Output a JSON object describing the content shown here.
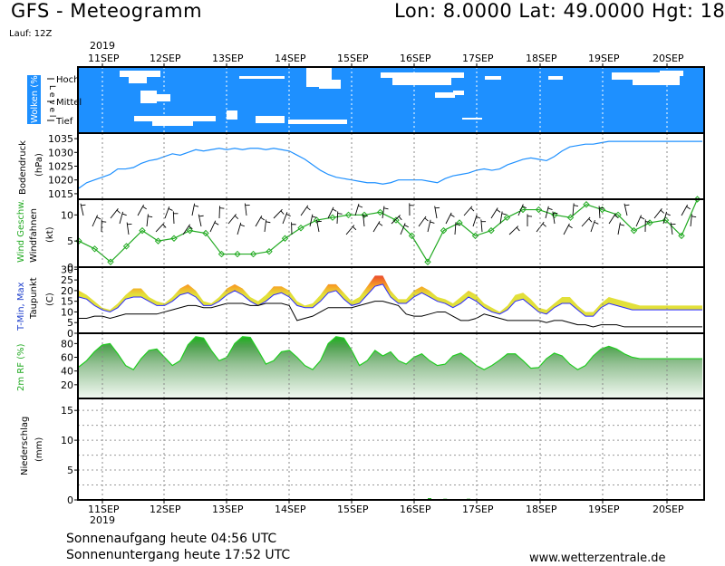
{
  "header": {
    "title": "GFS - Meteogramm",
    "coords": "Lon: 8.0000  Lat: 49.0000  Hgt: 18",
    "run": "Lauf: 12Z",
    "year": "2019"
  },
  "footer": {
    "sunrise": "Sonnenaufgang heute 04:56 UTC",
    "sunset": "Sonnenuntergang heute 17:52 UTC",
    "site": "www.wetterzentrale.de"
  },
  "colors": {
    "cloud_bg": "#1e90ff",
    "pressure": "#1e90ff",
    "wind_speed": "#22aa22",
    "temp_hot": "#e8392e",
    "temp_mid": "#f7a325",
    "temp_cool": "#e2e03a",
    "humidity": "#22cc22",
    "dew": "#000000"
  },
  "chart_data": [
    {
      "type": "area",
      "panel": "clouds",
      "ylabel": "Wolken (%)",
      "level_word": "L e v e l",
      "levels": [
        "Hoch",
        "Mittel",
        "Tief"
      ],
      "x_ticks": [
        "11SEP",
        "12SEP",
        "13SEP",
        "14SEP",
        "15SEP",
        "16SEP",
        "17SEP",
        "18SEP",
        "19SEP",
        "20SEP"
      ]
    },
    {
      "type": "line",
      "panel": "pressure",
      "ylabel": "Bodendruck",
      "unit": "(hPa)",
      "yticks": [
        1015,
        1020,
        1025,
        1030,
        1035
      ],
      "ylim": [
        1013,
        1037
      ],
      "x": [
        0,
        0.5,
        1,
        1.5,
        2,
        2.5,
        3,
        3.5,
        4,
        4.5,
        5,
        5.5,
        6,
        6.5,
        7,
        7.5,
        8,
        8.5,
        9,
        9.5,
        10,
        10.5,
        11,
        11.5,
        12,
        12.5,
        13,
        13.5,
        14,
        14.5,
        15,
        15.5,
        16,
        16.5,
        17,
        17.5,
        18,
        18.5,
        19,
        19.5,
        20,
        20.5,
        21,
        21.5,
        22,
        22.5,
        23,
        23.5,
        24,
        24.5,
        25,
        25.5,
        26,
        26.5,
        27,
        27.5,
        28,
        28.5,
        29,
        29.5,
        30,
        30.5,
        31,
        31.5,
        32,
        32.5,
        33,
        33.5,
        34,
        34.5,
        35,
        35.5,
        36,
        36.5,
        37,
        37.5,
        38,
        38.5,
        39,
        39.5,
        40
      ],
      "values": [
        1017,
        1019,
        1020,
        1021,
        1022,
        1024,
        1024,
        1024.5,
        1026,
        1027,
        1027.5,
        1028.5,
        1029.5,
        1029,
        1030,
        1031,
        1030.5,
        1031,
        1031.5,
        1031,
        1031.5,
        1031,
        1031.5,
        1031.5,
        1031,
        1031.5,
        1031,
        1030.5,
        1029,
        1027.5,
        1025.5,
        1023.5,
        1022,
        1021,
        1020.5,
        1020,
        1019.5,
        1019,
        1019,
        1018.5,
        1019,
        1020,
        1020,
        1020,
        1020,
        1019.5,
        1019,
        1020.5,
        1021.5,
        1022,
        1022.5,
        1023.5,
        1024,
        1023.5,
        1024,
        1025.5,
        1026.5,
        1027.5,
        1028,
        1027.5,
        1027,
        1028.5,
        1030.5,
        1032,
        1032.5,
        1033,
        1033,
        1033.5,
        1034,
        1034,
        1034,
        1034,
        1034,
        1034,
        1034,
        1034,
        1034,
        1034,
        1034,
        1034,
        1034
      ]
    },
    {
      "type": "line",
      "panel": "wind",
      "ylabel_a": "Wind Geschw.",
      "ylabel_b": "Windfahnen",
      "unit": "(kt)",
      "yticks": [
        0,
        5,
        10
      ],
      "ylim": [
        0,
        13
      ],
      "x": [
        0,
        1,
        2,
        3,
        4,
        5,
        6,
        7,
        8,
        9,
        10,
        11,
        12,
        13,
        14,
        15,
        16,
        17,
        18,
        19,
        20,
        21,
        22,
        23,
        24,
        25,
        26,
        27,
        28,
        29,
        30,
        31,
        32,
        33,
        34,
        35,
        36,
        37,
        38,
        39
      ],
      "values": [
        5,
        3.5,
        1,
        4,
        7,
        5,
        5.5,
        7,
        6.5,
        2.5,
        2.5,
        2.5,
        3,
        5.5,
        7.5,
        9,
        9.5,
        10,
        10,
        10.5,
        9,
        6,
        1,
        7,
        8.5,
        6,
        7,
        9.5,
        11,
        11,
        10,
        9.5,
        12,
        11,
        10,
        7,
        8.5,
        9,
        6,
        13
      ]
    },
    {
      "type": "area",
      "panel": "temperature",
      "ylabel_a": "T-Min, Max",
      "ylabel_b": "Taupunkt",
      "unit": "(C)",
      "yticks": [
        0,
        5,
        10,
        15,
        20,
        25,
        30
      ],
      "ylim": [
        0,
        31
      ],
      "x": [
        0,
        0.5,
        1,
        1.5,
        2,
        2.5,
        3,
        3.5,
        4,
        4.5,
        5,
        5.5,
        6,
        6.5,
        7,
        7.5,
        8,
        8.5,
        9,
        9.5,
        10,
        10.5,
        11,
        11.5,
        12,
        12.5,
        13,
        13.5,
        14,
        14.5,
        15,
        15.5,
        16,
        16.5,
        17,
        17.5,
        18,
        18.5,
        19,
        19.5,
        20,
        20.5,
        21,
        21.5,
        22,
        22.5,
        23,
        23.5,
        24,
        24.5,
        25,
        25.5,
        26,
        26.5,
        27,
        27.5,
        28,
        28.5,
        29,
        29.5,
        30,
        30.5,
        31,
        31.5,
        32,
        32.5,
        33,
        33.5,
        34,
        34.5,
        35,
        35.5,
        36,
        36.5,
        37,
        37.5,
        38,
        38.5,
        39,
        39.5,
        40
      ],
      "tmax": [
        20,
        18,
        15,
        12,
        11,
        14,
        18,
        21,
        21,
        17,
        15,
        14,
        17,
        21,
        23,
        20,
        15,
        14,
        17,
        21,
        23,
        21,
        17,
        15,
        18,
        22,
        22,
        20,
        15,
        13,
        14,
        18,
        23,
        23,
        19,
        15,
        17,
        22,
        27,
        27,
        20,
        16,
        16,
        20,
        22,
        20,
        17,
        16,
        14,
        17,
        20,
        18,
        14,
        12,
        10,
        13,
        18,
        19,
        16,
        12,
        11,
        14,
        17,
        17,
        13,
        10,
        10,
        14,
        17,
        16,
        15,
        14,
        13,
        13,
        13,
        13,
        13,
        13,
        13,
        13,
        13
      ],
      "tmin": [
        17,
        16,
        13,
        11,
        10,
        12,
        16,
        17,
        17,
        15,
        13,
        13,
        15,
        18,
        19,
        17,
        13,
        13,
        15,
        18,
        20,
        18,
        15,
        13,
        15,
        18,
        19,
        17,
        13,
        12,
        12,
        15,
        19,
        20,
        16,
        13,
        14,
        18,
        22,
        23,
        17,
        14,
        14,
        17,
        19,
        17,
        15,
        14,
        12,
        14,
        17,
        15,
        12,
        10,
        9,
        11,
        15,
        16,
        13,
        10,
        9,
        12,
        14,
        14,
        11,
        8,
        8,
        12,
        14,
        13,
        12,
        11,
        11,
        11,
        11,
        11,
        11,
        11,
        11,
        11,
        11
      ],
      "dew": [
        7,
        7,
        8,
        8,
        7,
        8,
        9,
        9,
        9,
        9,
        9,
        10,
        11,
        12,
        13,
        13,
        12,
        12,
        13,
        14,
        14,
        14,
        13,
        13,
        14,
        14,
        14,
        13,
        6,
        7,
        8,
        10,
        12,
        12,
        12,
        12,
        13,
        14,
        15,
        15,
        14,
        13,
        9,
        8,
        8,
        9,
        10,
        10,
        8,
        6,
        6,
        7,
        9,
        8,
        7,
        6,
        6,
        6,
        6,
        6,
        5,
        6,
        6,
        5,
        4,
        4,
        3,
        4,
        4,
        4,
        3,
        3,
        3,
        3,
        3,
        3,
        3,
        3,
        3,
        3,
        3
      ]
    },
    {
      "type": "area",
      "panel": "humidity",
      "ylabel": "2m RF (%)",
      "yticks": [
        20,
        40,
        60,
        80
      ],
      "ylim": [
        0,
        95
      ],
      "x": [
        0,
        0.5,
        1,
        1.5,
        2,
        2.5,
        3,
        3.5,
        4,
        4.5,
        5,
        5.5,
        6,
        6.5,
        7,
        7.5,
        8,
        8.5,
        9,
        9.5,
        10,
        10.5,
        11,
        11.5,
        12,
        12.5,
        13,
        13.5,
        14,
        14.5,
        15,
        15.5,
        16,
        16.5,
        17,
        17.5,
        18,
        18.5,
        19,
        19.5,
        20,
        20.5,
        21,
        21.5,
        22,
        22.5,
        23,
        23.5,
        24,
        24.5,
        25,
        25.5,
        26,
        26.5,
        27,
        27.5,
        28,
        28.5,
        29,
        29.5,
        30,
        30.5,
        31,
        31.5,
        32,
        32.5,
        33,
        33.5,
        34,
        34.5,
        35,
        35.5,
        36,
        36.5,
        37,
        37.5,
        38,
        38.5,
        39,
        39.5,
        40
      ],
      "values": [
        46,
        55,
        68,
        78,
        80,
        65,
        48,
        42,
        58,
        70,
        72,
        60,
        48,
        55,
        78,
        90,
        88,
        70,
        55,
        60,
        80,
        90,
        89,
        70,
        50,
        55,
        68,
        70,
        60,
        48,
        42,
        55,
        80,
        90,
        88,
        70,
        48,
        55,
        70,
        62,
        68,
        55,
        50,
        60,
        65,
        55,
        48,
        50,
        62,
        66,
        58,
        48,
        42,
        48,
        56,
        65,
        65,
        55,
        44,
        45,
        58,
        66,
        62,
        50,
        42,
        48,
        62,
        72,
        76,
        72,
        65,
        60,
        58,
        58,
        58,
        58,
        58,
        58,
        58,
        58,
        58
      ]
    },
    {
      "type": "bar",
      "panel": "precipitation",
      "ylabel": "Niederschlag",
      "unit": "(mm)",
      "yticks": [
        0,
        5,
        10,
        15
      ],
      "ylim": [
        0,
        17
      ],
      "x": [
        22.5,
        23.5,
        25
      ],
      "values": [
        0.3,
        0.2,
        0.2
      ]
    }
  ]
}
